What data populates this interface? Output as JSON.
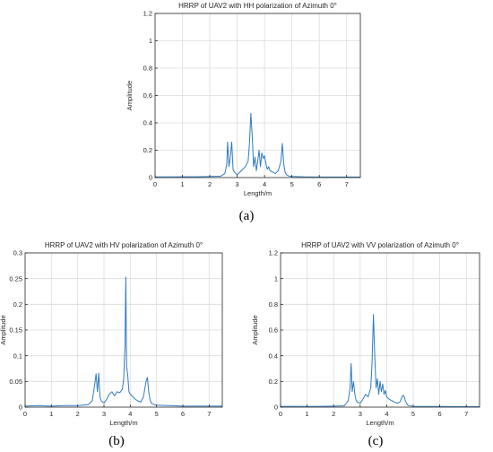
{
  "chart_data": [
    {
      "type": "line",
      "title": "HRRP of UAV2 with HH polarization of Azimuth 0°",
      "xlabel": "Length/m",
      "ylabel": "Amplitude",
      "xlim": [
        0,
        7.5
      ],
      "ylim": [
        0,
        1.2
      ],
      "xticks": [
        0,
        1,
        2,
        3,
        4,
        5,
        6,
        7
      ],
      "yticks": [
        0,
        0.2,
        0.4,
        0.6,
        0.8,
        1,
        1.2
      ],
      "ytick_labels": [
        "0",
        "0.2",
        "0.4",
        "0.6",
        "0.8",
        "1",
        "1.2"
      ],
      "grid": true,
      "color": "#2f7bbf",
      "caption": "(a)",
      "series": [
        {
          "x": [
            0,
            0.5,
            1.0,
            1.5,
            2.0,
            2.4,
            2.55,
            2.62,
            2.65,
            2.7,
            2.75,
            2.8,
            2.85,
            2.9,
            2.95,
            3.0,
            3.1,
            3.2,
            3.3,
            3.4,
            3.45,
            3.5,
            3.55,
            3.6,
            3.65,
            3.7,
            3.75,
            3.8,
            3.85,
            3.9,
            3.95,
            4.0,
            4.05,
            4.1,
            4.15,
            4.2,
            4.3,
            4.4,
            4.5,
            4.6,
            4.65,
            4.7,
            4.75,
            4.8,
            4.9,
            5.0,
            5.5,
            6.0,
            6.5,
            7.0,
            7.5
          ],
          "y": [
            0.005,
            0.005,
            0.006,
            0.006,
            0.008,
            0.01,
            0.03,
            0.1,
            0.26,
            0.08,
            0.15,
            0.26,
            0.06,
            0.04,
            0.03,
            0.02,
            0.04,
            0.06,
            0.08,
            0.12,
            0.25,
            0.47,
            0.3,
            0.08,
            0.15,
            0.05,
            0.12,
            0.2,
            0.08,
            0.18,
            0.14,
            0.16,
            0.1,
            0.06,
            0.08,
            0.05,
            0.04,
            0.03,
            0.05,
            0.12,
            0.25,
            0.1,
            0.04,
            0.02,
            0.01,
            0.008,
            0.005,
            0.004,
            0.004,
            0.004,
            0.004
          ]
        }
      ]
    },
    {
      "type": "line",
      "title": "HRRP of UAV2 with HV polarization of Azimuth 0°",
      "xlabel": "Length/m",
      "ylabel": "Amplitude",
      "xlim": [
        0,
        7.5
      ],
      "ylim": [
        0,
        0.3
      ],
      "xticks": [
        0,
        1,
        2,
        3,
        4,
        5,
        6,
        7
      ],
      "yticks": [
        0,
        0.05,
        0.1,
        0.15,
        0.2,
        0.25,
        0.3
      ],
      "ytick_labels": [
        "0",
        "0.05",
        "0.1",
        "0.15",
        "0.2",
        "0.25",
        "0.3"
      ],
      "grid": true,
      "color": "#2f7bbf",
      "caption": "(b)",
      "series": [
        {
          "x": [
            0,
            0.5,
            1.0,
            1.5,
            2.0,
            2.4,
            2.55,
            2.6,
            2.65,
            2.7,
            2.75,
            2.8,
            2.85,
            2.9,
            3.0,
            3.1,
            3.2,
            3.3,
            3.4,
            3.5,
            3.6,
            3.7,
            3.75,
            3.8,
            3.83,
            3.86,
            3.9,
            3.95,
            4.0,
            4.1,
            4.2,
            4.3,
            4.4,
            4.5,
            4.6,
            4.65,
            4.7,
            4.75,
            4.8,
            4.9,
            5.0,
            5.5,
            6.0,
            6.5,
            7.0,
            7.5
          ],
          "y": [
            0.002,
            0.003,
            0.002,
            0.003,
            0.003,
            0.005,
            0.012,
            0.028,
            0.045,
            0.065,
            0.03,
            0.066,
            0.02,
            0.012,
            0.008,
            0.015,
            0.025,
            0.03,
            0.022,
            0.03,
            0.028,
            0.035,
            0.055,
            0.12,
            0.253,
            0.08,
            0.065,
            0.03,
            0.025,
            0.02,
            0.015,
            0.012,
            0.01,
            0.02,
            0.05,
            0.058,
            0.03,
            0.015,
            0.008,
            0.005,
            0.004,
            0.003,
            0.002,
            0.002,
            0.002,
            0.002
          ]
        }
      ]
    },
    {
      "type": "line",
      "title": "HRRP of UAV2 with VV polarization of Azimuth 0°",
      "xlabel": "Length/m",
      "ylabel": "Amplitude",
      "xlim": [
        0,
        7.5
      ],
      "ylim": [
        0,
        1.2
      ],
      "xticks": [
        0,
        1,
        2,
        3,
        4,
        5,
        6,
        7
      ],
      "yticks": [
        0,
        0.2,
        0.4,
        0.6,
        0.8,
        1,
        1.2
      ],
      "ytick_labels": [
        "0",
        "0.2",
        "0.4",
        "0.6",
        "0.8",
        "1",
        "1.2"
      ],
      "grid": true,
      "color": "#2f7bbf",
      "caption": "(c)",
      "series": [
        {
          "x": [
            0,
            0.5,
            1.0,
            1.5,
            2.0,
            2.4,
            2.55,
            2.62,
            2.66,
            2.7,
            2.75,
            2.8,
            2.85,
            2.9,
            3.0,
            3.1,
            3.2,
            3.3,
            3.4,
            3.45,
            3.5,
            3.55,
            3.6,
            3.65,
            3.7,
            3.75,
            3.8,
            3.85,
            3.9,
            3.95,
            4.0,
            4.1,
            4.2,
            4.3,
            4.4,
            4.5,
            4.6,
            4.65,
            4.7,
            4.75,
            4.8,
            4.9,
            5.0,
            5.5,
            6.0,
            6.5,
            7.0,
            7.5
          ],
          "y": [
            0.005,
            0.006,
            0.005,
            0.006,
            0.008,
            0.01,
            0.05,
            0.15,
            0.34,
            0.12,
            0.2,
            0.1,
            0.05,
            0.04,
            0.03,
            0.06,
            0.1,
            0.08,
            0.15,
            0.35,
            0.72,
            0.4,
            0.15,
            0.22,
            0.1,
            0.2,
            0.12,
            0.18,
            0.1,
            0.13,
            0.08,
            0.06,
            0.05,
            0.04,
            0.03,
            0.04,
            0.09,
            0.09,
            0.05,
            0.03,
            0.015,
            0.01,
            0.006,
            0.005,
            0.005,
            0.004,
            0.004,
            0.004
          ]
        }
      ]
    }
  ]
}
